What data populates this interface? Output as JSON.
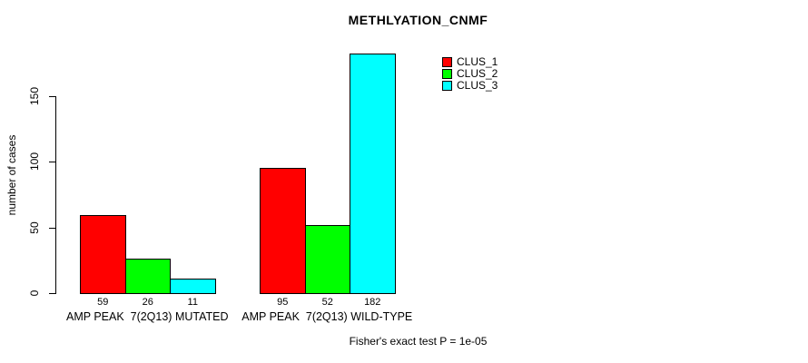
{
  "chart_data": {
    "type": "bar",
    "title": "METHLYATION_CNMF",
    "ylabel": "number of cases",
    "xlabel": "",
    "categories": [
      "AMP PEAK  7(2Q13) MUTATED",
      "AMP PEAK  7(2Q13) WILD-TYPE"
    ],
    "series": [
      {
        "name": "CLUS_1",
        "color": "#ff0000",
        "values": [
          59,
          95
        ]
      },
      {
        "name": "CLUS_2",
        "color": "#00ff00",
        "values": [
          26,
          52
        ]
      },
      {
        "name": "CLUS_3",
        "color": "#00ffff",
        "values": [
          11,
          182
        ]
      }
    ],
    "y_ticks": [
      0,
      50,
      100,
      150
    ],
    "ylim": [
      0,
      182
    ],
    "grid": false,
    "legend_position": "top-right",
    "bar_border_color": "#000000",
    "footnote": "Fisher's exact test P = 1e-05"
  }
}
